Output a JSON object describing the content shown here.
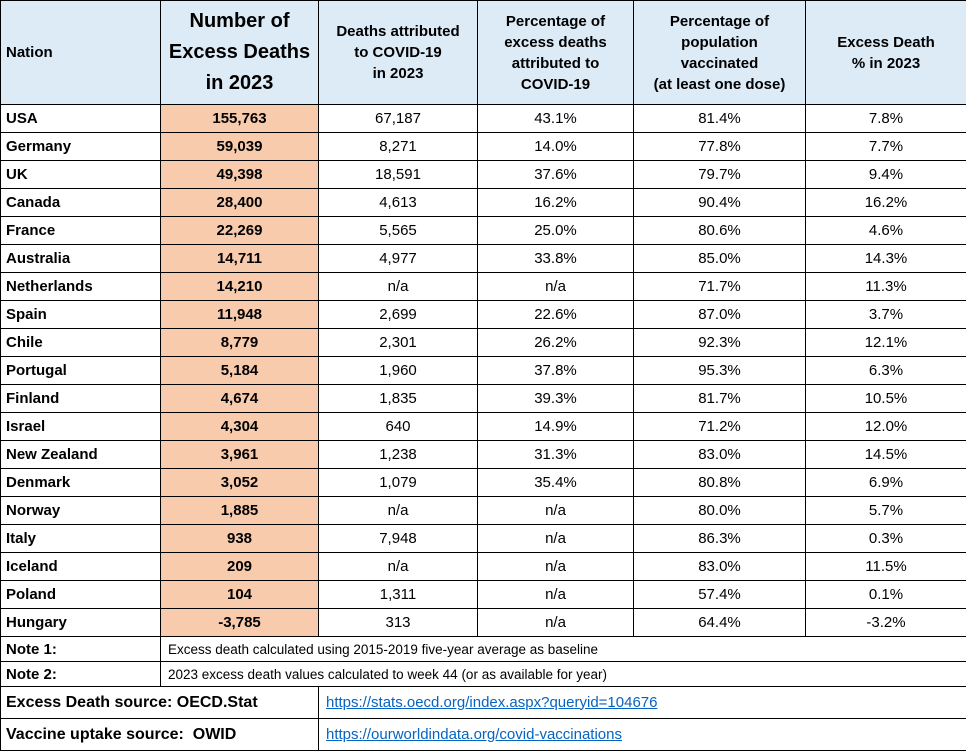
{
  "chart_data": {
    "type": "table",
    "columns": [
      "Nation",
      "Number of\nExcess Deaths\nin 2023",
      "Deaths attributed\nto COVID-19\nin 2023",
      "Percentage of\nexcess deaths\nattributed to\nCOVID-19",
      "Percentage of\npopulation\nvaccinated\n(at least one dose)",
      "Excess Death\n% in 2023"
    ],
    "rows": [
      [
        "USA",
        "155,763",
        "67,187",
        "43.1%",
        "81.4%",
        "7.8%"
      ],
      [
        "Germany",
        "59,039",
        "8,271",
        "14.0%",
        "77.8%",
        "7.7%"
      ],
      [
        "UK",
        "49,398",
        "18,591",
        "37.6%",
        "79.7%",
        "9.4%"
      ],
      [
        "Canada",
        "28,400",
        "4,613",
        "16.2%",
        "90.4%",
        "16.2%"
      ],
      [
        "France",
        "22,269",
        "5,565",
        "25.0%",
        "80.6%",
        "4.6%"
      ],
      [
        "Australia",
        "14,711",
        "4,977",
        "33.8%",
        "85.0%",
        "14.3%"
      ],
      [
        "Netherlands",
        "14,210",
        "n/a",
        "n/a",
        "71.7%",
        "11.3%"
      ],
      [
        "Spain",
        "11,948",
        "2,699",
        "22.6%",
        "87.0%",
        "3.7%"
      ],
      [
        "Chile",
        "8,779",
        "2,301",
        "26.2%",
        "92.3%",
        "12.1%"
      ],
      [
        "Portugal",
        "5,184",
        "1,960",
        "37.8%",
        "95.3%",
        "6.3%"
      ],
      [
        "Finland",
        "4,674",
        "1,835",
        "39.3%",
        "81.7%",
        "10.5%"
      ],
      [
        "Israel",
        "4,304",
        "640",
        "14.9%",
        "71.2%",
        "12.0%"
      ],
      [
        "New Zealand",
        "3,961",
        "1,238",
        "31.3%",
        "83.0%",
        "14.5%"
      ],
      [
        "Denmark",
        "3,052",
        "1,079",
        "35.4%",
        "80.8%",
        "6.9%"
      ],
      [
        "Norway",
        "1,885",
        "n/a",
        "n/a",
        "80.0%",
        "5.7%"
      ],
      [
        "Italy",
        "938",
        "7,948",
        "n/a",
        "86.3%",
        "0.3%"
      ],
      [
        "Iceland",
        "209",
        "n/a",
        "n/a",
        "83.0%",
        "11.5%"
      ],
      [
        "Poland",
        "104",
        "1,311",
        "n/a",
        "57.4%",
        "0.1%"
      ],
      [
        "Hungary",
        "-3,785",
        "313",
        "n/a",
        "64.4%",
        "-3.2%"
      ]
    ]
  },
  "notes": [
    {
      "label": "Note 1:",
      "text": "Excess death calculated using 2015-2019 five-year average as baseline"
    },
    {
      "label": "Note 2:",
      "text": "2023 excess death values calculated to week 44 (or as available for year)"
    }
  ],
  "sources": [
    {
      "label": "Excess Death source: OECD.Stat",
      "link": "https://stats.oecd.org/index.aspx?queryid=104676"
    },
    {
      "label": "Vaccine uptake source:  OWID",
      "link": "https://ourworldindata.org/covid-vaccinations"
    }
  ],
  "colors": {
    "header_bg": "#DDEBF7",
    "excess_column_bg": "#F8CBAD",
    "link": "#0563C1",
    "border": "#000000"
  }
}
